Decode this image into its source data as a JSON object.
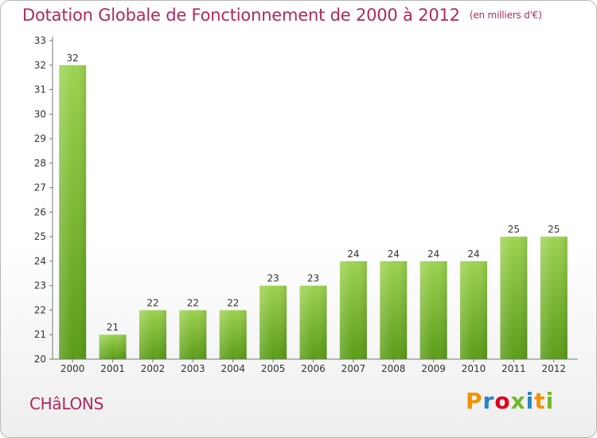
{
  "header": {
    "title": "Dotation Globale de Fonctionnement de 2000 à 2012",
    "unit": "(en milliers d'€)"
  },
  "footer": {
    "commune": "CHâLONS",
    "logo_text": "Proxiti",
    "logo_colors": [
      "#f29100",
      "#2a83c6",
      "#e2001a",
      "#73b72b",
      "#2a83c6",
      "#f29100",
      "#73b72b"
    ]
  },
  "colors": {
    "title": "#b0285f",
    "bar_top": "#9dd350",
    "bar_bottom": "#5a9c16"
  },
  "chart_data": {
    "type": "bar",
    "title": "Dotation Globale de Fonctionnement de 2000 à 2012",
    "subtitle": "(en milliers d'€)",
    "categories": [
      "2000",
      "2001",
      "2002",
      "2003",
      "2004",
      "2005",
      "2006",
      "2007",
      "2008",
      "2009",
      "2010",
      "2011",
      "2012"
    ],
    "values": [
      32,
      21,
      22,
      22,
      22,
      23,
      23,
      24,
      24,
      24,
      24,
      25,
      25
    ],
    "data_labels": [
      "32",
      "21",
      "22",
      "22",
      "22",
      "23",
      "23",
      "24",
      "24",
      "24",
      "24",
      "25",
      "25"
    ],
    "ylim": [
      20,
      33
    ],
    "yticks": [
      20,
      21,
      22,
      23,
      24,
      25,
      26,
      27,
      28,
      29,
      30,
      31,
      32,
      33
    ],
    "grid": false,
    "legend": "none"
  }
}
